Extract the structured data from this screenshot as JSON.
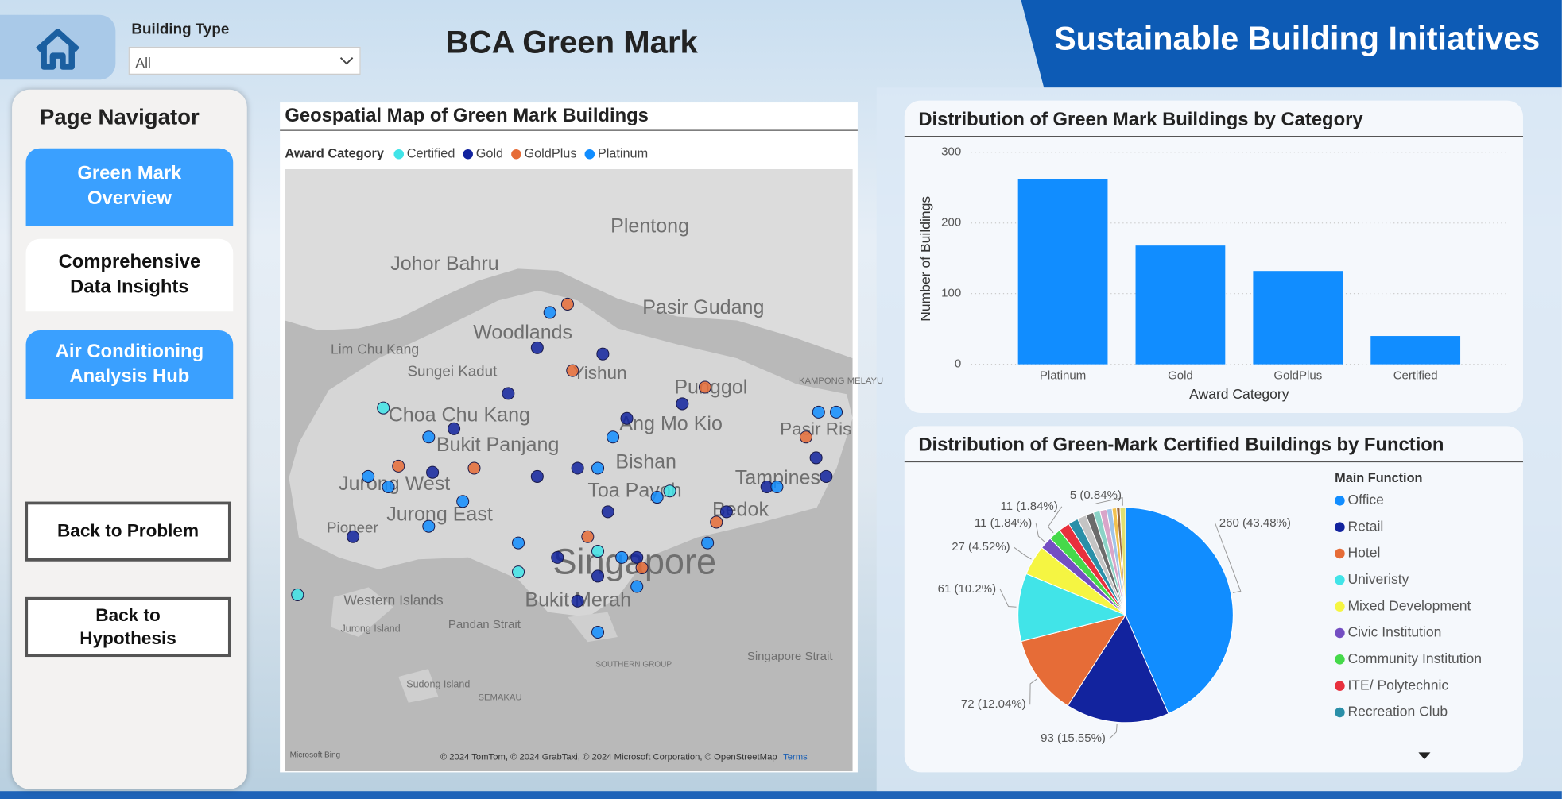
{
  "header": {
    "title": "BCA Green Mark",
    "banner": "Sustainable Building Initiatives"
  },
  "filter": {
    "label": "Building Type",
    "value": "All"
  },
  "navigator": {
    "title": "Page Navigator",
    "buttons": [
      "Green Mark Overview",
      "Comprehensive Data Insights",
      "Air Conditioning Analysis Hub",
      "Back to Problem",
      "Back to Hypothesis"
    ]
  },
  "chart_data": [
    {
      "type": "map",
      "title": "Geospatial Map of Green Mark Buildings",
      "legend_title": "Award Category",
      "xlim": [
        103.6,
        104.05
      ],
      "ylim": [
        1.2,
        1.49
      ],
      "place_labels": [
        "Plentong",
        "Johor Bahru",
        "Pasir Gudang",
        "Woodlands",
        "Lim Chu Kang",
        "Sungei Kadut",
        "Yishun",
        "Punggol",
        "Choa Chu Kang",
        "Ang Mo Kio",
        "Bukit Panjang",
        "Pasir Ris",
        "Bishan",
        "Jurong West",
        "Toa Payoh",
        "Tampines",
        "Jurong East",
        "Bedok",
        "Pioneer",
        "Singapore",
        "Bukit Merah",
        "Western Islands",
        "Pandan Strait",
        "Singapore Strait",
        "Jurong Island",
        "Sudong Island",
        "SEMAKAU",
        "SOUTHERN GROUP",
        "KAMPONG MELAYU"
      ],
      "attribution": "© 2024 TomTom, © 2024 GrabTaxi, © 2024 Microsoft Corporation, © OpenStreetMap",
      "terms": "Terms",
      "provider": "Microsoft Bing",
      "series": [
        {
          "name": "Certified",
          "color": "#41e4e8",
          "x": [
            103.61,
            103.678,
            103.785,
            103.848,
            103.905
          ],
          "values": [
            1.285,
            1.375,
            1.296,
            1.306,
            1.335
          ]
        },
        {
          "name": "Gold",
          "color": "#12239e",
          "x": [
            103.8,
            103.852,
            103.777,
            103.734,
            103.717,
            103.8,
            103.832,
            103.871,
            103.915,
            103.982,
            103.816,
            103.848,
            103.879,
            103.832,
            103.95,
            104.021,
            103.654,
            103.856,
            104.029
          ],
          "values": [
            1.404,
            1.401,
            1.382,
            1.365,
            1.344,
            1.342,
            1.346,
            1.37,
            1.377,
            1.337,
            1.303,
            1.294,
            1.303,
            1.282,
            1.325,
            1.351,
            1.313,
            1.325,
            1.342
          ]
        },
        {
          "name": "GoldPlus",
          "color": "#e66c37",
          "x": [
            103.824,
            103.828,
            103.933,
            103.69,
            103.75,
            103.84,
            103.883,
            103.942,
            104.013
          ],
          "values": [
            1.425,
            1.393,
            1.385,
            1.347,
            1.346,
            1.313,
            1.298,
            1.32,
            1.361
          ]
        },
        {
          "name": "Platinum",
          "color": "#118dff",
          "x": [
            103.81,
            103.666,
            103.682,
            103.714,
            103.741,
            103.785,
            103.848,
            103.867,
            103.895,
            103.935,
            103.99,
            104.023,
            104.037,
            103.848,
            103.879,
            103.714,
            103.86
          ],
          "values": [
            1.421,
            1.342,
            1.337,
            1.361,
            1.33,
            1.31,
            1.346,
            1.303,
            1.332,
            1.31,
            1.337,
            1.373,
            1.373,
            1.267,
            1.289,
            1.318,
            1.361
          ]
        }
      ]
    },
    {
      "type": "bar",
      "title": "Distribution of Green Mark Buildings by Category",
      "x_label": "Award Category",
      "y_label": "Number of Buildings",
      "categories": [
        "Platinum",
        "Gold",
        "GoldPlus",
        "Certified"
      ],
      "values": [
        262,
        168,
        132,
        40
      ],
      "color": "#118dff",
      "ylim": [
        0,
        300
      ],
      "yticks": [
        0,
        100,
        200,
        300
      ],
      "grid": true
    },
    {
      "type": "pie",
      "title": "Distribution of Green-Mark Certified Buildings by Function",
      "legend_title": "Main Function",
      "categories": [
        "Office",
        "Retail",
        "Hotel",
        "Univeristy",
        "Mixed Development",
        "Civic Institution",
        "Community Institution",
        "ITE/ Polytechnic",
        "Recreation Club",
        null,
        null,
        null,
        null,
        null,
        null,
        null,
        null
      ],
      "values": [
        260,
        93,
        72,
        61,
        27,
        11,
        11,
        10,
        9,
        8,
        7,
        6,
        6,
        5,
        4,
        3,
        5
      ],
      "value_labels": [
        "260 (43.48%)",
        "93 (15.55%)",
        "72 (12.04%)",
        "61 (10.2%)",
        "27 (4.52%)",
        "11 (1.84%)",
        "11 (1.84%)",
        null,
        null,
        null,
        null,
        null,
        null,
        null,
        null,
        null,
        "5 (0.84%)"
      ],
      "colors": [
        "#118dff",
        "#12239e",
        "#e66c37",
        "#41e4e8",
        "#f5f542",
        "#744ec2",
        "#45d94a",
        "#e8303d",
        "#2a8fa8",
        "#c4c4c4",
        "#6b6b6b",
        "#8bd3c7",
        "#d9a5c9",
        "#a0c4e8",
        "#f2c14e",
        "#9b6a3f",
        "#e0e070"
      ]
    }
  ]
}
